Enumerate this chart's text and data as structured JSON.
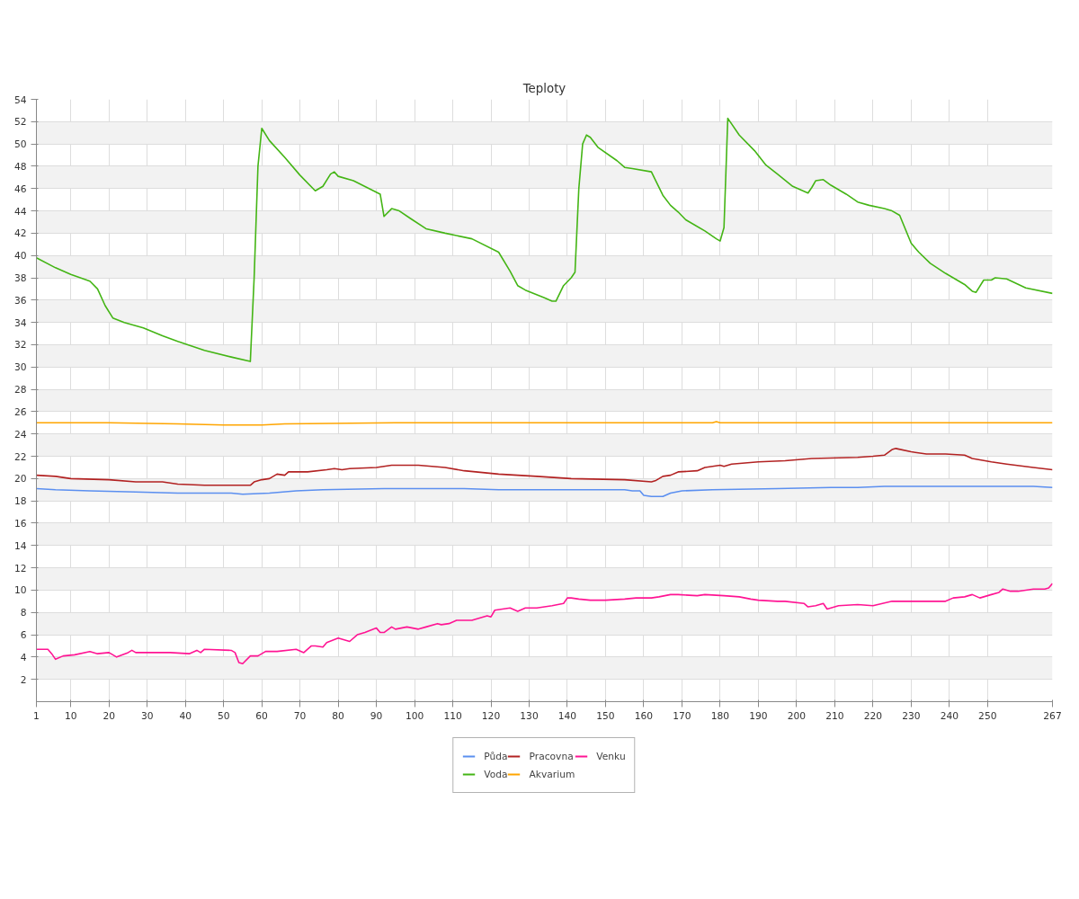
{
  "chart_data": {
    "type": "line",
    "title": "Teploty",
    "xlim": [
      1,
      267
    ],
    "xticks": [
      1,
      10,
      20,
      30,
      40,
      50,
      60,
      70,
      80,
      90,
      100,
      110,
      120,
      130,
      140,
      150,
      160,
      170,
      180,
      190,
      200,
      210,
      220,
      230,
      240,
      250,
      267
    ],
    "ylim": [
      0,
      54
    ],
    "yticks": [
      2,
      4,
      6,
      8,
      10,
      12,
      14,
      16,
      18,
      20,
      22,
      24,
      26,
      28,
      30,
      32,
      34,
      36,
      38,
      40,
      42,
      44,
      46,
      48,
      50,
      52,
      54
    ],
    "grid": true,
    "legend": "bottom",
    "line_style": "solid",
    "marker": "none",
    "series": [
      {
        "name": "Půda",
        "color": "#5b8ff0",
        "x": [
          1,
          6,
          15,
          27,
          38,
          52,
          55,
          62,
          69,
          76,
          92,
          113,
          122,
          155,
          157,
          159,
          160,
          162,
          165,
          167,
          170,
          178,
          195,
          209,
          216,
          223,
          227,
          262,
          267
        ],
        "values": [
          19.1,
          19.0,
          18.9,
          18.8,
          18.7,
          18.7,
          18.6,
          18.7,
          18.9,
          19.0,
          19.1,
          19.1,
          19.0,
          19.0,
          18.9,
          18.9,
          18.5,
          18.4,
          18.4,
          18.7,
          18.9,
          19.0,
          19.1,
          19.2,
          19.2,
          19.3,
          19.3,
          19.3,
          19.2
        ]
      },
      {
        "name": "Voda",
        "color": "#44b515",
        "x": [
          1,
          6,
          10,
          15,
          17,
          19,
          21,
          24,
          29,
          34,
          38,
          45,
          52,
          57,
          58,
          59,
          60,
          62,
          66,
          70,
          74,
          76,
          78,
          79,
          80,
          84,
          91,
          92,
          94,
          96,
          99,
          103,
          108,
          115,
          122,
          125,
          127,
          129,
          134,
          136,
          137,
          139,
          141,
          142,
          143,
          144,
          145,
          146,
          148,
          153,
          155,
          157,
          162,
          163,
          165,
          167,
          169,
          171,
          176,
          179,
          180,
          181,
          182,
          185,
          189,
          192,
          195,
          199,
          203,
          204,
          205,
          207,
          209,
          213,
          216,
          219,
          223,
          225,
          227,
          230,
          232,
          235,
          239,
          244,
          246,
          247,
          249,
          251,
          252,
          255,
          260,
          267
        ],
        "values": [
          39.8,
          38.9,
          38.3,
          37.7,
          37.0,
          35.5,
          34.4,
          34.0,
          33.5,
          32.8,
          32.3,
          31.5,
          30.9,
          30.5,
          38,
          48,
          51.4,
          50.3,
          48.8,
          47.2,
          45.8,
          46.2,
          47.3,
          47.5,
          47.1,
          46.7,
          45.5,
          43.5,
          44.2,
          44.0,
          43.3,
          42.4,
          42.0,
          41.5,
          40.3,
          38.6,
          37.3,
          36.9,
          36.2,
          35.9,
          35.9,
          37.3,
          38.0,
          38.5,
          46,
          50.0,
          50.8,
          50.6,
          49.7,
          48.5,
          47.9,
          47.8,
          47.5,
          46.8,
          45.4,
          44.5,
          43.9,
          43.2,
          42.2,
          41.5,
          41.3,
          42.5,
          52.3,
          50.8,
          49.4,
          48.1,
          47.3,
          46.2,
          45.6,
          46.1,
          46.7,
          46.8,
          46.3,
          45.5,
          44.8,
          44.5,
          44.2,
          44.0,
          43.6,
          41.1,
          40.3,
          39.3,
          38.4,
          37.4,
          36.8,
          36.7,
          37.8,
          37.8,
          38.0,
          37.9,
          37.1,
          36.6
        ]
      },
      {
        "name": "Pracovna",
        "color": "#b22222",
        "x": [
          1,
          6,
          10,
          20,
          27,
          34,
          38,
          45,
          55,
          57,
          58,
          60,
          62,
          64,
          66,
          67,
          72,
          77,
          79,
          81,
          83,
          90,
          94,
          101,
          108,
          113,
          122,
          132,
          141,
          155,
          162,
          163,
          165,
          167,
          169,
          174,
          176,
          180,
          181,
          183,
          190,
          197,
          204,
          216,
          220,
          223,
          225,
          226,
          230,
          234,
          239,
          244,
          246,
          251,
          255,
          262,
          267
        ],
        "values": [
          20.3,
          20.2,
          20.0,
          19.9,
          19.7,
          19.7,
          19.5,
          19.4,
          19.4,
          19.4,
          19.7,
          19.9,
          20.0,
          20.4,
          20.3,
          20.6,
          20.6,
          20.8,
          20.9,
          20.8,
          20.9,
          21.0,
          21.2,
          21.2,
          21.0,
          20.7,
          20.4,
          20.2,
          20.0,
          19.9,
          19.7,
          19.8,
          20.2,
          20.3,
          20.6,
          20.7,
          21.0,
          21.2,
          21.1,
          21.3,
          21.5,
          21.6,
          21.8,
          21.9,
          22.0,
          22.1,
          22.6,
          22.7,
          22.4,
          22.2,
          22.2,
          22.1,
          21.8,
          21.5,
          21.3,
          21.0,
          20.8
        ]
      },
      {
        "name": "Akvarium",
        "color": "#ffa500",
        "x": [
          1,
          20,
          38,
          50,
          60,
          66,
          95,
          100,
          178,
          179,
          180,
          267
        ],
        "values": [
          25.0,
          25.0,
          24.9,
          24.8,
          24.8,
          24.9,
          25.0,
          25.0,
          25.0,
          25.1,
          25.0,
          25.0
        ]
      },
      {
        "name": "Venku",
        "color": "#ff1493",
        "x": [
          1,
          4,
          5,
          6,
          8,
          11,
          15,
          17,
          20,
          22,
          25,
          26,
          27,
          31,
          36,
          41,
          43,
          44,
          45,
          52,
          53,
          54,
          55,
          57,
          59,
          61,
          64,
          69,
          71,
          73,
          74,
          76,
          77,
          80,
          83,
          85,
          87,
          90,
          91,
          92,
          94,
          95,
          98,
          101,
          103,
          106,
          107,
          109,
          111,
          113,
          115,
          119,
          120,
          121,
          125,
          127,
          129,
          132,
          136,
          139,
          140,
          141,
          143,
          146,
          150,
          155,
          158,
          159,
          162,
          164,
          167,
          169,
          174,
          176,
          181,
          185,
          188,
          190,
          195,
          197,
          202,
          203,
          205,
          207,
          208,
          211,
          216,
          220,
          225,
          234,
          239,
          241,
          244,
          246,
          248,
          251,
          253,
          254,
          256,
          258,
          262,
          265,
          266,
          267
        ],
        "values": [
          4.7,
          4.7,
          4.3,
          3.8,
          4.1,
          4.2,
          4.5,
          4.3,
          4.4,
          4.0,
          4.4,
          4.6,
          4.4,
          4.4,
          4.4,
          4.3,
          4.6,
          4.4,
          4.7,
          4.6,
          4.4,
          3.5,
          3.4,
          4.1,
          4.1,
          4.5,
          4.5,
          4.7,
          4.4,
          5.0,
          5.0,
          4.9,
          5.3,
          5.7,
          5.4,
          6.0,
          6.2,
          6.6,
          6.2,
          6.2,
          6.7,
          6.5,
          6.7,
          6.5,
          6.7,
          7.0,
          6.9,
          7.0,
          7.3,
          7.3,
          7.3,
          7.7,
          7.6,
          8.2,
          8.4,
          8.1,
          8.4,
          8.4,
          8.6,
          8.8,
          9.3,
          9.3,
          9.2,
          9.1,
          9.1,
          9.2,
          9.3,
          9.3,
          9.3,
          9.4,
          9.6,
          9.6,
          9.5,
          9.6,
          9.5,
          9.4,
          9.2,
          9.1,
          9.0,
          9.0,
          8.8,
          8.5,
          8.6,
          8.8,
          8.3,
          8.6,
          8.7,
          8.6,
          9.0,
          9.0,
          9.0,
          9.3,
          9.4,
          9.6,
          9.3,
          9.6,
          9.8,
          10.1,
          9.9,
          9.9,
          10.1,
          10.1,
          10.2,
          10.6
        ]
      }
    ]
  }
}
